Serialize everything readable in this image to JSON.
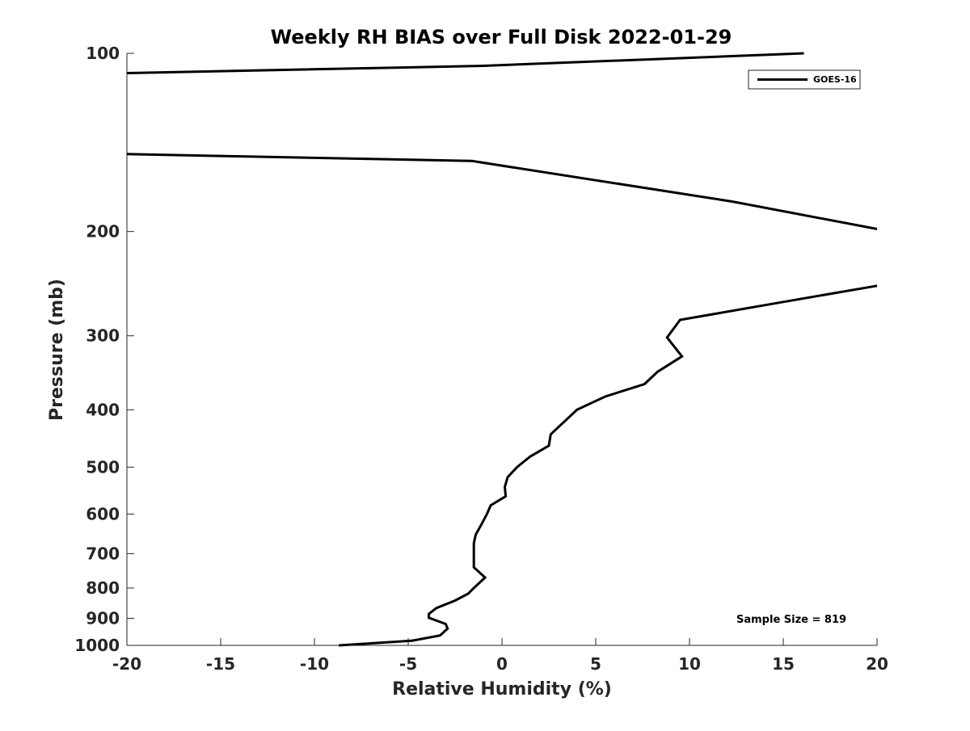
{
  "chart_data": {
    "type": "line",
    "title": "Weekly RH BIAS over Full Disk 2022-01-29",
    "xlabel": "Relative Humidity (%)",
    "ylabel": "Pressure (mb)",
    "xlim": [
      -20,
      20
    ],
    "ylim": [
      100,
      1000
    ],
    "y_scale": "log",
    "y_reversed": true,
    "x_ticks": [
      -20,
      -15,
      -10,
      -5,
      0,
      5,
      10,
      15,
      20
    ],
    "y_ticks": [
      100,
      200,
      300,
      400,
      500,
      600,
      700,
      800,
      900,
      1000
    ],
    "grid": false,
    "legend_position": "top-right",
    "line_color": "#000000",
    "series": [
      {
        "name": "GOES-16",
        "points": [
          [
            -8.7,
            1000
          ],
          [
            -4.8,
            982
          ],
          [
            -3.3,
            962
          ],
          [
            -2.9,
            937
          ],
          [
            -3.0,
            920
          ],
          [
            -3.9,
            898
          ],
          [
            -3.9,
            885
          ],
          [
            -3.5,
            865
          ],
          [
            -2.5,
            840
          ],
          [
            -1.8,
            818
          ],
          [
            -1.5,
            800
          ],
          [
            -0.9,
            768
          ],
          [
            -1.5,
            738
          ],
          [
            -1.5,
            720
          ],
          [
            -1.5,
            695
          ],
          [
            -1.5,
            672
          ],
          [
            -1.4,
            650
          ],
          [
            -1.1,
            625
          ],
          [
            -0.8,
            600
          ],
          [
            -0.6,
            580
          ],
          [
            0.2,
            560
          ],
          [
            0.15,
            540
          ],
          [
            0.3,
            520
          ],
          [
            0.8,
            500
          ],
          [
            1.5,
            480
          ],
          [
            2.5,
            460
          ],
          [
            2.6,
            440
          ],
          [
            4.0,
            400
          ],
          [
            5.5,
            380
          ],
          [
            7.6,
            362
          ],
          [
            8.3,
            345
          ],
          [
            9.6,
            325
          ],
          [
            8.8,
            302
          ],
          [
            9.5,
            282
          ],
          [
            15.0,
            263
          ],
          [
            20.0,
            247
          ]
        ]
      },
      {
        "name": "",
        "points": [
          [
            20.0,
            198
          ],
          [
            12.3,
            178
          ],
          [
            -1.6,
            152
          ],
          [
            -20.0,
            148
          ]
        ]
      },
      {
        "name": "",
        "points": [
          [
            -20.0,
            108
          ],
          [
            -1.0,
            105
          ],
          [
            16.1,
            100
          ]
        ]
      }
    ],
    "legend": [
      {
        "label": "GOES-16"
      }
    ],
    "annotations": [
      {
        "text": "Sample Size = 819"
      }
    ]
  }
}
